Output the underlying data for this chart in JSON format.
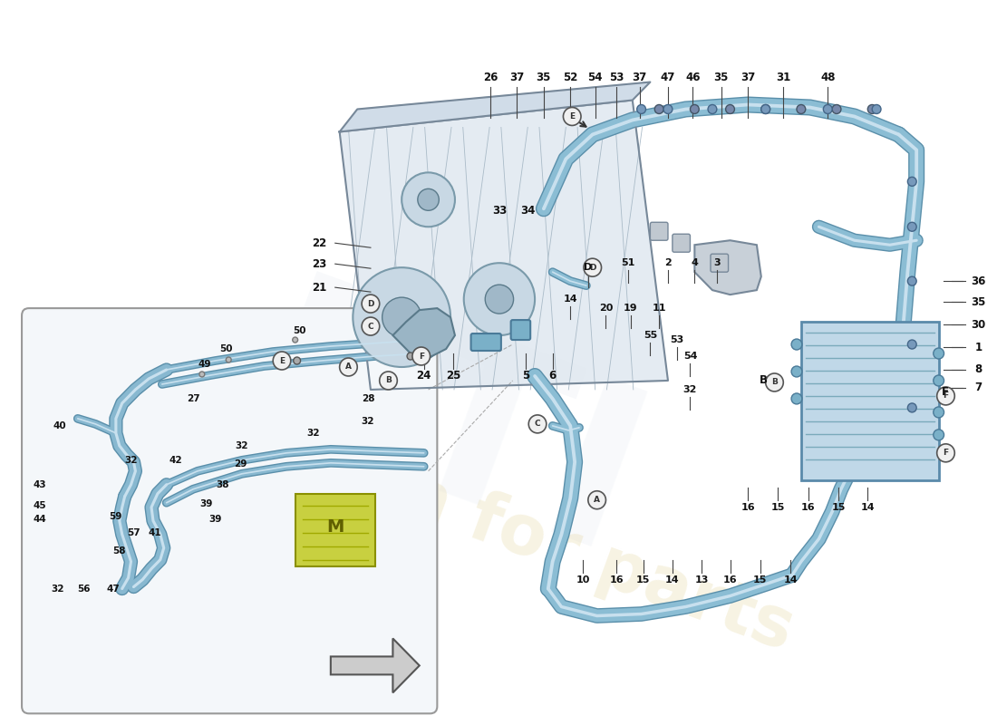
{
  "bg_color": "#ffffff",
  "pipe_color": "#8bbdd4",
  "pipe_dark": "#5a8faa",
  "pipe_light": "#c8e0ee",
  "label_color": "#111111",
  "gearbox_fill": "#e8eef2",
  "gearbox_line": "#888888",
  "hx_fill": "#c0d8e8",
  "hx_line": "#7aaabb",
  "inset_fill": "#f4f7fa",
  "inset_line": "#999999",
  "circle_fill": "#f0f0f0",
  "circle_line": "#555555",
  "watermark1": "#d0dce8",
  "watermark2": "#e0d090",
  "figsize": [
    11,
    8
  ],
  "dpi": 100,
  "top_labels": [
    [
      "26",
      530,
      85
    ],
    [
      "37",
      560,
      85
    ],
    [
      "35",
      590,
      85
    ],
    [
      "52",
      620,
      85
    ],
    [
      "54",
      648,
      85
    ],
    [
      "53",
      672,
      85
    ],
    [
      "37",
      698,
      85
    ],
    [
      "47",
      730,
      85
    ],
    [
      "46",
      758,
      85
    ],
    [
      "35",
      790,
      85
    ],
    [
      "37",
      820,
      85
    ],
    [
      "31",
      860,
      85
    ],
    [
      "48",
      910,
      85
    ]
  ],
  "right_labels": [
    [
      "36",
      1080,
      310
    ],
    [
      "35",
      1080,
      333
    ],
    [
      "30",
      1080,
      358
    ],
    [
      "1",
      1080,
      383
    ],
    [
      "8",
      1080,
      408
    ],
    [
      "7",
      1080,
      428
    ],
    [
      "F",
      1042,
      433
    ],
    [
      "B",
      838,
      420
    ]
  ],
  "mid_labels": [
    [
      "51",
      685,
      290
    ],
    [
      "2",
      730,
      290
    ],
    [
      "4",
      760,
      290
    ],
    [
      "3",
      785,
      290
    ],
    [
      "14",
      620,
      330
    ],
    [
      "20",
      660,
      340
    ],
    [
      "19",
      688,
      340
    ],
    [
      "11",
      720,
      340
    ],
    [
      "53",
      740,
      375
    ],
    [
      "55",
      710,
      370
    ],
    [
      "54",
      755,
      393
    ],
    [
      "32",
      755,
      430
    ],
    [
      "D",
      640,
      295
    ]
  ],
  "lower_right_labels": [
    [
      "16",
      820,
      560
    ],
    [
      "15",
      854,
      560
    ],
    [
      "16",
      888,
      560
    ],
    [
      "15",
      922,
      560
    ],
    [
      "14",
      955,
      560
    ],
    [
      "10",
      634,
      640
    ],
    [
      "16",
      672,
      640
    ],
    [
      "15",
      702,
      640
    ],
    [
      "14",
      735,
      640
    ],
    [
      "13",
      768,
      640
    ],
    [
      "16",
      800,
      640
    ],
    [
      "15",
      834,
      640
    ],
    [
      "14",
      868,
      640
    ]
  ],
  "gearbox_labels": [
    [
      "22",
      337,
      268
    ],
    [
      "23",
      337,
      291
    ],
    [
      "21",
      337,
      317
    ],
    [
      "24",
      455,
      415
    ],
    [
      "25",
      488,
      415
    ],
    [
      "5",
      570,
      415
    ],
    [
      "6",
      600,
      415
    ],
    [
      "33",
      540,
      232
    ],
    [
      "34",
      572,
      232
    ]
  ],
  "inset_labels": [
    [
      "50",
      315,
      365
    ],
    [
      "50",
      232,
      385
    ],
    [
      "49",
      208,
      402
    ],
    [
      "27",
      195,
      440
    ],
    [
      "28",
      392,
      440
    ],
    [
      "32",
      392,
      465
    ],
    [
      "32",
      330,
      478
    ],
    [
      "32",
      250,
      492
    ],
    [
      "32",
      125,
      508
    ],
    [
      "40",
      45,
      470
    ],
    [
      "42",
      175,
      508
    ],
    [
      "29",
      248,
      512
    ],
    [
      "38",
      228,
      535
    ],
    [
      "39",
      210,
      556
    ],
    [
      "39",
      220,
      573
    ],
    [
      "43",
      22,
      535
    ],
    [
      "45",
      22,
      558
    ],
    [
      "44",
      22,
      573
    ],
    [
      "59",
      108,
      570
    ],
    [
      "57",
      128,
      588
    ],
    [
      "41",
      152,
      588
    ],
    [
      "58",
      112,
      608
    ],
    [
      "32",
      42,
      650
    ],
    [
      "56",
      72,
      650
    ],
    [
      "47",
      105,
      650
    ]
  ]
}
